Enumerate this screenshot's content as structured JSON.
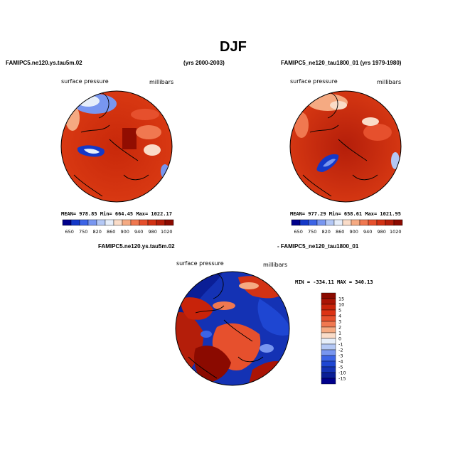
{
  "figure": {
    "title": "DJF"
  },
  "panel_left": {
    "case_name": "FAMIPC5.ne120.ys.tau5m.02",
    "years": "(yrs 2000-2003)",
    "field_label": "surface pressure",
    "units": "millibars",
    "stats": "MEAN= 978.85   Min= 664.45   Max= 1022.17"
  },
  "panel_right": {
    "case_name": "FAMIPC5_ne120_tau1800_01 (yrs 1979-1980)",
    "field_label": "surface pressure",
    "units": "millibars",
    "stats": "MEAN= 977.29   Min= 658.61   Max= 1021.95"
  },
  "panel_diff": {
    "case_a": "FAMIPC5.ne120.ys.tau5m.02",
    "case_b": "- FAMIPC5_ne120_tau1800_01",
    "field_label": "surface pressure",
    "units": "millibars",
    "stats": "MIN = -334.11  MAX = 340.13"
  },
  "colorbar_abs": {
    "ticks": [
      "650",
      "750",
      "820",
      "860",
      "900",
      "940",
      "980",
      "1020"
    ],
    "colors": [
      "#00008b",
      "#1438c8",
      "#3c64e6",
      "#7896f0",
      "#b4c8f5",
      "#e6eefa",
      "#fadcc8",
      "#f5aa82",
      "#f07850",
      "#e6502d",
      "#d23214",
      "#b41e0a",
      "#8b0a00"
    ]
  },
  "colorbar_diff": {
    "ticks": [
      "15",
      "10",
      "5",
      "4",
      "3",
      "2",
      "1",
      "0",
      "-1",
      "-2",
      "-3",
      "-4",
      "-5",
      "-10",
      "-15"
    ],
    "colors": [
      "#8b0a00",
      "#aa1405",
      "#c8230a",
      "#dc3214",
      "#e6502d",
      "#f07850",
      "#f5aa82",
      "#fadcc8",
      "#e6eefa",
      "#b4c8f5",
      "#7896f0",
      "#3c64e6",
      "#1e46d2",
      "#1432b4",
      "#0a1e96",
      "#00008b"
    ]
  }
}
